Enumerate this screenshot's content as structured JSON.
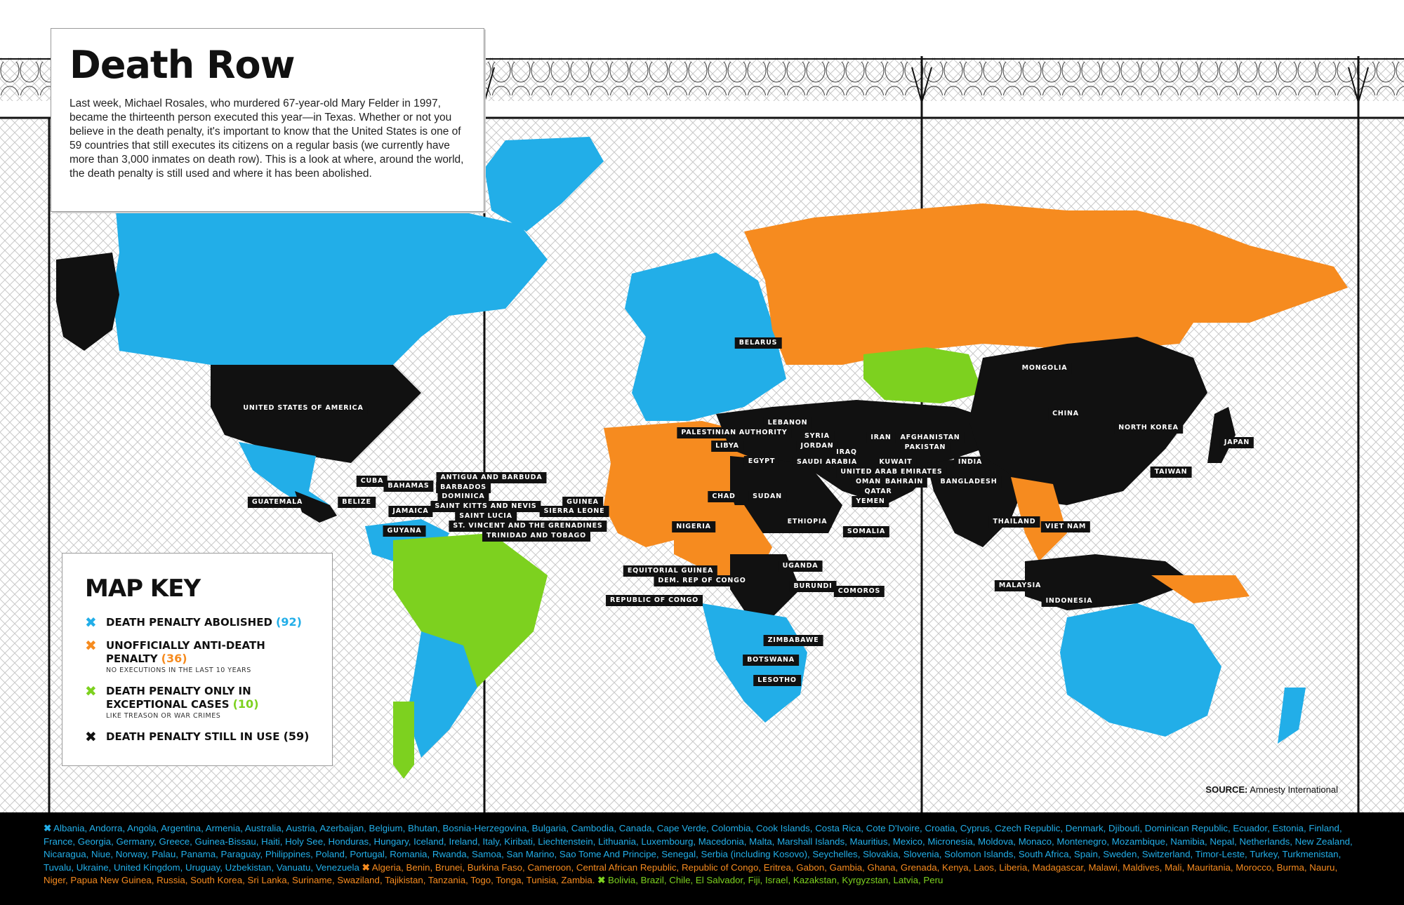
{
  "header": {
    "title": "Death Row",
    "intro": "Last week, Michael Rosales, who murdered 67-year-old Mary Felder in 1997, became the thirteenth person executed this year—in Texas. Whether or not you believe in the death penalty, it's important to know that the United States is one of 59 countries that still executes its citizens on a regular basis (we currently have more than 3,000 inmates on death row). This is a look at where, around the world, the death penalty is still used and where it has been abolished."
  },
  "colors": {
    "abolished": "#22aee8",
    "unofficial": "#f68b1f",
    "exceptional": "#7dd11f",
    "in_use": "#111111"
  },
  "map_labels": [
    {
      "name": "UNITED STATES OF AMERICA"
    },
    {
      "name": "CUBA"
    },
    {
      "name": "BAHAMAS"
    },
    {
      "name": "ANTIGUA AND BARBUDA"
    },
    {
      "name": "BARBADOS"
    },
    {
      "name": "DOMINICA"
    },
    {
      "name": "SAINT KITTS AND NEVIS"
    },
    {
      "name": "SAINT LUCIA"
    },
    {
      "name": "ST. VINCENT AND THE GRENADINES"
    },
    {
      "name": "TRINIDAD AND TOBAGO"
    },
    {
      "name": "GUATEMALA"
    },
    {
      "name": "BELIZE"
    },
    {
      "name": "JAMAICA"
    },
    {
      "name": "GUYANA"
    },
    {
      "name": "GUINEA"
    },
    {
      "name": "SIERRA LEONE"
    },
    {
      "name": "BELARUS"
    },
    {
      "name": "LEBANON"
    },
    {
      "name": "PALESTINIAN AUTHORITY"
    },
    {
      "name": "SYRIA"
    },
    {
      "name": "LIBYA"
    },
    {
      "name": "JORDAN"
    },
    {
      "name": "IRAQ"
    },
    {
      "name": "IRAN"
    },
    {
      "name": "AFGHANISTAN"
    },
    {
      "name": "PAKISTAN"
    },
    {
      "name": "EGYPT"
    },
    {
      "name": "SAUDI ARABIA"
    },
    {
      "name": "KUWAIT"
    },
    {
      "name": "INDIA"
    },
    {
      "name": "UNITED ARAB EMIRATES"
    },
    {
      "name": "OMAN"
    },
    {
      "name": "BAHRAIN"
    },
    {
      "name": "QATAR"
    },
    {
      "name": "YEMEN"
    },
    {
      "name": "BANGLADESH"
    },
    {
      "name": "CHAD"
    },
    {
      "name": "SUDAN"
    },
    {
      "name": "ETHIOPIA"
    },
    {
      "name": "NIGERIA"
    },
    {
      "name": "SOMALIA"
    },
    {
      "name": "EQUITORIAL GUINEA"
    },
    {
      "name": "DEM. REP OF CONGO"
    },
    {
      "name": "UGANDA"
    },
    {
      "name": "BURUNDI"
    },
    {
      "name": "COMOROS"
    },
    {
      "name": "REPUBLIC OF CONGO"
    },
    {
      "name": "ZIMBABAWE"
    },
    {
      "name": "BOTSWANA"
    },
    {
      "name": "LESOTHO"
    },
    {
      "name": "MONGOLIA"
    },
    {
      "name": "CHINA"
    },
    {
      "name": "NORTH KOREA"
    },
    {
      "name": "JAPAN"
    },
    {
      "name": "TAIWAN"
    },
    {
      "name": "THAILAND"
    },
    {
      "name": "VIET NAM"
    },
    {
      "name": "MALAYSIA"
    },
    {
      "name": "INDONESIA"
    }
  ],
  "key": {
    "title": "MAP KEY",
    "items": [
      {
        "icon": "x-mark-icon",
        "color": "#22aee8",
        "label": "DEATH PENALTY ABOLISHED",
        "count": "(92)",
        "note": ""
      },
      {
        "icon": "x-mark-icon",
        "color": "#f68b1f",
        "label": "UNOFFICIALLY ANTI-DEATH PENALTY",
        "count": "(36)",
        "note": "NO EXECUTIONS IN THE LAST 10 YEARS"
      },
      {
        "icon": "x-mark-icon",
        "color": "#7dd11f",
        "label": "DEATH PENALTY ONLY IN EXCEPTIONAL CASES",
        "count": "(10)",
        "note": "LIKE TREASON OR WAR CRIMES"
      },
      {
        "icon": "x-mark-icon",
        "color": "#111111",
        "label": "DEATH PENALTY STILL IN USE",
        "count": "(59)",
        "note": ""
      }
    ]
  },
  "source": {
    "label": "SOURCE:",
    "text": "Amnesty International"
  },
  "footer": {
    "abolished": "Albania, Andorra, Angola, Argentina, Armenia, Australia, Austria, Azerbaijan, Belgium, Bhutan, Bosnia-Herzegovina, Bulgaria, Cambodia, Canada, Cape Verde, Colombia, Cook Islands, Costa Rica, Cote D'Ivoire, Croatia, Cyprus, Czech Republic, Denmark, Djibouti, Dominican Republic, Ecuador, Estonia, Finland, France, Georgia, Germany, Greece, Guinea-Bissau, Haiti, Holy See, Honduras, Hungary, Iceland, Ireland, Italy, Kiribati, Liechtenstein, Lithuania, Luxembourg, Macedonia, Malta, Marshall Islands, Mauritius, Mexico, Micronesia, Moldova, Monaco, Montenegro, Mozambique, Namibia, Nepal, Netherlands, New Zealand, Nicaragua, Niue, Norway, Palau, Panama, Paraguay, Philippines, Poland, Portugal, Romania, Rwanda, Samoa, San Marino, Sao Tome And Principe, Senegal, Serbia (including Kosovo), Seychelles, Slovakia, Slovenia, Solomon Islands, South Africa, Spain, Sweden, Switzerland, Timor-Leste, Turkey, Turkmenistan, Tuvalu, Ukraine, United Kingdom, Uruguay, Uzbekistan, Vanuatu, Venezuela",
    "unofficial": "Algeria, Benin, Brunei, Burkina Faso, Cameroon, Central African Republic, Republic of Congo, Eritrea, Gabon, Gambia, Ghana, Grenada, Kenya, Laos, Liberia, Madagascar, Malawi, Maldives, Mali, Mauritania, Morocco, Burma, Nauru, Niger, Papua New Guinea, Russia, South Korea, Sri Lanka, Suriname, Swaziland, Tajikistan, Tanzania, Togo, Tonga, Tunisia, Zambia.",
    "exceptional": "Bolivia, Brazil, Chile, El Salvador, Fiji, Israel, Kazakstan, Kyrgyzstan, Latvia, Peru"
  }
}
